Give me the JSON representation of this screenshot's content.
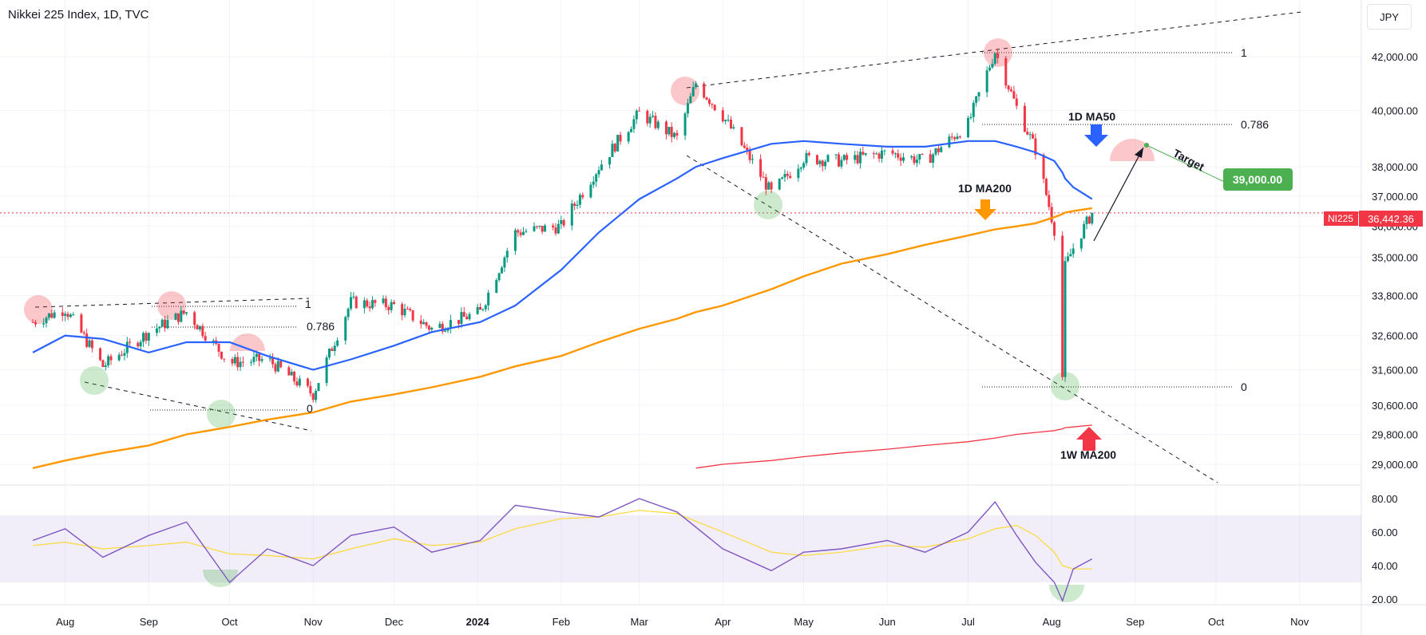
{
  "header": {
    "title": "Nikkei 225 Index, 1D, TVC",
    "currency": "JPY"
  },
  "price_axis": {
    "ticks": [
      "42,000.00",
      "40,000.00",
      "38,000.00",
      "37,000.00",
      "36,000.00",
      "35,000.00",
      "33,800.00",
      "32,600.00",
      "31,600.00",
      "30,600.00",
      "29,800.00",
      "29,000.00"
    ]
  },
  "rsi_axis": {
    "ticks": [
      "80.00",
      "60.00",
      "40.00",
      "20.00"
    ]
  },
  "time_axis": {
    "labels": [
      "Aug",
      "Sep",
      "Oct",
      "Nov",
      "Dec",
      "2024",
      "Feb",
      "Mar",
      "Apr",
      "May",
      "Jun",
      "Jul",
      "Aug",
      "Sep",
      "Oct",
      "Nov"
    ]
  },
  "badges": {
    "symbol": "NI225",
    "last_price": "36,442.36",
    "target_price": "39,000.00"
  },
  "annotations": {
    "fib_1_left": "1",
    "fib_0786_left": "0.786",
    "fib_0_left": "0",
    "fib_1_right": "1",
    "fib_0786_right": "0.786",
    "fib_0_right": "0",
    "ma50": "1D MA50",
    "ma200": "1D MA200",
    "wma200": "1W MA200",
    "target": "Target"
  },
  "colors": {
    "up": "#089981",
    "down": "#f23645",
    "ma50": "#2962ff",
    "ma200": "#ff9800",
    "wma200": "#f23645",
    "rsi": "#7e57c2",
    "rsi_ma": "#fdd835",
    "rsi_band": "#7e57c2",
    "target_badge": "#4caf50"
  },
  "chart_data": [
    {
      "type": "line",
      "title": "Nikkei 225 Index, 1D, TVC",
      "x": [
        "2023-07-20",
        "2023-08-01",
        "2023-08-15",
        "2023-09-01",
        "2023-09-15",
        "2023-10-01",
        "2023-10-15",
        "2023-11-01",
        "2023-11-15",
        "2023-12-01",
        "2023-12-15",
        "2024-01-02",
        "2024-01-15",
        "2024-02-01",
        "2024-02-15",
        "2024-03-01",
        "2024-03-15",
        "2024-03-22",
        "2024-04-01",
        "2024-04-19",
        "2024-05-01",
        "2024-05-15",
        "2024-06-01",
        "2024-06-15",
        "2024-07-01",
        "2024-07-11",
        "2024-07-19",
        "2024-07-26",
        "2024-08-02",
        "2024-08-05",
        "2024-08-06",
        "2024-08-09",
        "2024-08-16"
      ],
      "series": [
        {
          "name": "NI225",
          "values": [
            33000,
            33400,
            31700,
            32700,
            33300,
            31800,
            31900,
            30900,
            33600,
            33500,
            32800,
            33300,
            35800,
            36000,
            38000,
            39900,
            39000,
            41000,
            39800,
            37100,
            38300,
            38200,
            38500,
            38200,
            39500,
            42200,
            40100,
            38600,
            35900,
            31400,
            34700,
            35300,
            36442
          ]
        },
        {
          "name": "1D MA50",
          "values": [
            32100,
            32600,
            32500,
            32100,
            32400,
            32400,
            32000,
            31600,
            31900,
            32300,
            32700,
            33000,
            33500,
            34600,
            35800,
            36900,
            37600,
            38000,
            38300,
            38800,
            38900,
            38800,
            38700,
            38700,
            38900,
            38900,
            38700,
            38500,
            38200,
            37800,
            37600,
            37300,
            36900
          ]
        },
        {
          "name": "1D MA200",
          "values": [
            28900,
            29100,
            29300,
            29500,
            29800,
            30000,
            30200,
            30400,
            30700,
            30900,
            31100,
            31400,
            31700,
            32000,
            32400,
            32800,
            33100,
            33300,
            33500,
            34000,
            34400,
            34800,
            35100,
            35400,
            35700,
            35900,
            36000,
            36100,
            36300,
            36400,
            36450,
            36500,
            36600
          ]
        },
        {
          "name": "1W MA200",
          "values": [
            null,
            null,
            null,
            null,
            null,
            null,
            null,
            null,
            null,
            null,
            null,
            null,
            null,
            null,
            null,
            null,
            null,
            28900,
            29000,
            29100,
            29200,
            29300,
            29400,
            29500,
            29600,
            29700,
            29800,
            29850,
            29900,
            29950,
            29980,
            30000,
            30050
          ]
        }
      ],
      "ylim": [
        28600,
        43300
      ],
      "log_scale": true,
      "fibonacci": [
        {
          "levels": [
            1,
            0.786,
            0
          ],
          "prices": [
            33700,
            33000,
            30700
          ]
        },
        {
          "levels": [
            1,
            0.786,
            0
          ],
          "prices": [
            42400,
            39800,
            31200
          ]
        }
      ],
      "target": 39000,
      "last_price": 36442.36
    },
    {
      "type": "line",
      "title": "",
      "x": [
        "2023-07-20",
        "2023-08-01",
        "2023-08-15",
        "2023-09-01",
        "2023-09-15",
        "2023-10-01",
        "2023-10-15",
        "2023-11-01",
        "2023-11-15",
        "2023-12-01",
        "2023-12-15",
        "2024-01-02",
        "2024-01-15",
        "2024-02-01",
        "2024-02-15",
        "2024-03-01",
        "2024-03-15",
        "2024-04-01",
        "2024-04-19",
        "2024-05-01",
        "2024-05-15",
        "2024-06-01",
        "2024-06-15",
        "2024-07-01",
        "2024-07-11",
        "2024-07-19",
        "2024-07-26",
        "2024-08-02",
        "2024-08-05",
        "2024-08-09",
        "2024-08-16"
      ],
      "series": [
        {
          "name": "RSI",
          "values": [
            55,
            62,
            45,
            58,
            66,
            30,
            50,
            40,
            58,
            63,
            48,
            55,
            76,
            72,
            69,
            80,
            72,
            50,
            37,
            48,
            50,
            55,
            48,
            60,
            78,
            58,
            42,
            30,
            19,
            38,
            44
          ]
        },
        {
          "name": "RSI MA",
          "values": [
            52,
            54,
            50,
            52,
            54,
            47,
            46,
            44,
            50,
            56,
            52,
            54,
            62,
            68,
            69,
            73,
            71,
            60,
            48,
            46,
            48,
            52,
            51,
            56,
            62,
            64,
            58,
            48,
            40,
            38,
            38
          ]
        }
      ],
      "ylim": [
        15,
        83
      ],
      "bands": [
        30,
        70
      ]
    }
  ]
}
